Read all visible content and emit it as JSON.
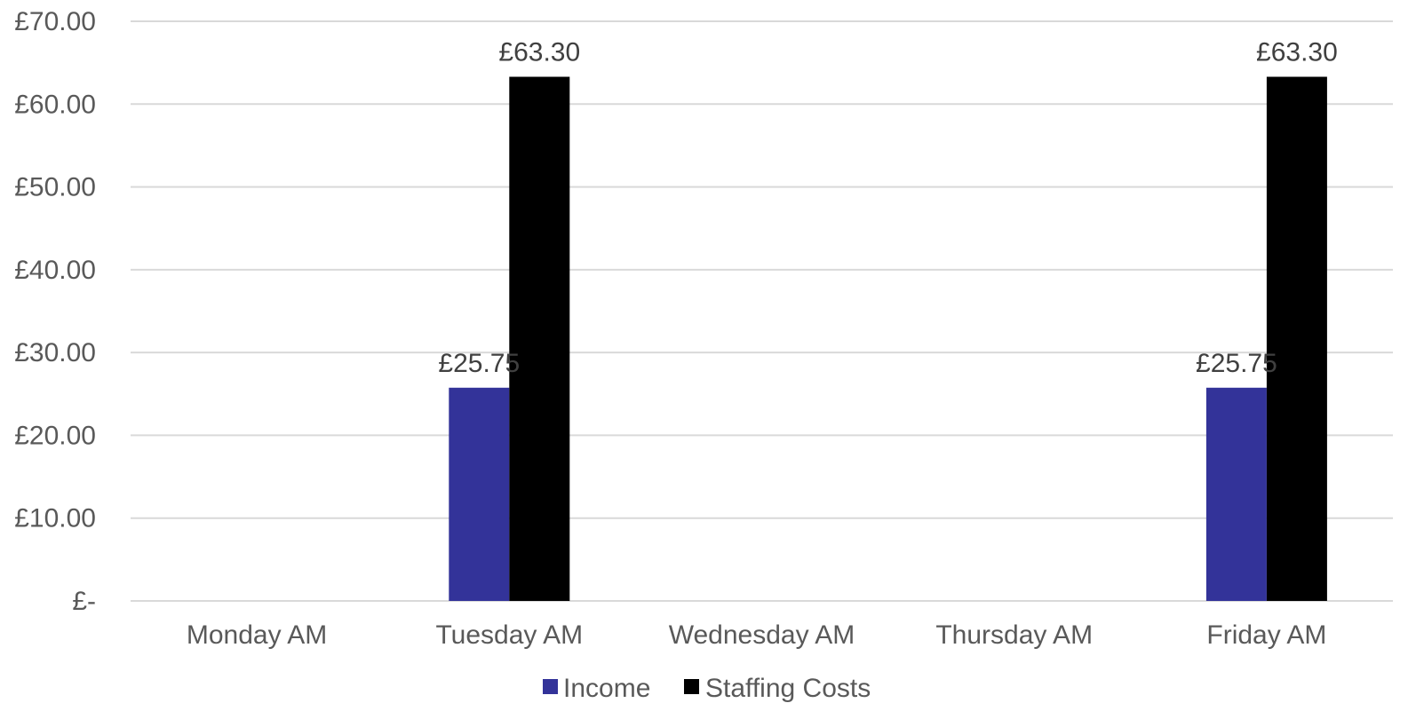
{
  "chart_data": {
    "type": "bar",
    "title": "",
    "xlabel": "",
    "ylabel": "",
    "categories": [
      "Monday AM",
      "Tuesday AM",
      "Wednesday AM",
      "Thursday AM",
      "Friday AM"
    ],
    "series": [
      {
        "name": "Income",
        "color": "#333399",
        "values": [
          0,
          25.75,
          0,
          0,
          25.75
        ],
        "labels": [
          "",
          "£25.75",
          "",
          "",
          "£25.75"
        ]
      },
      {
        "name": "Staffing Costs",
        "color": "#000000",
        "values": [
          0,
          63.3,
          0,
          0,
          63.3
        ],
        "labels": [
          "",
          "£63.30",
          "",
          "",
          "£63.30"
        ]
      }
    ],
    "ylim": [
      0,
      70
    ],
    "yticks": [
      0,
      10,
      20,
      30,
      40,
      50,
      60,
      70
    ],
    "ytick_labels": [
      "£-",
      "£10.00",
      "£20.00",
      "£30.00",
      "£40.00",
      "£50.00",
      "£60.00",
      "£70.00"
    ],
    "grid": true,
    "legend_position": "bottom"
  }
}
